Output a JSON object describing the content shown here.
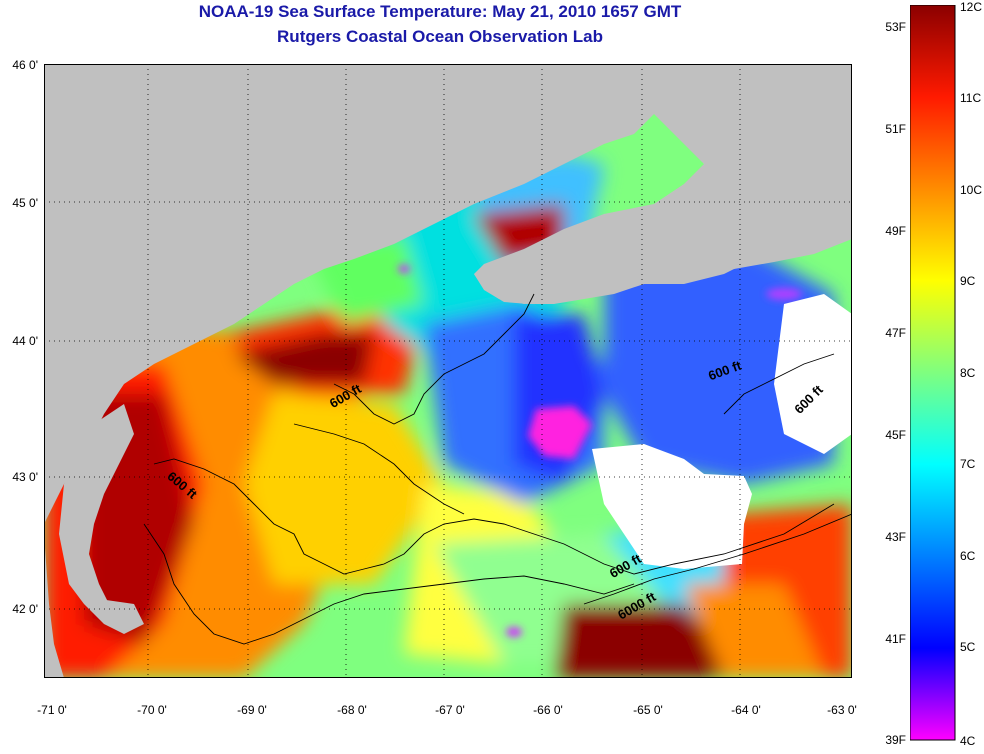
{
  "title": "NOAA-19 Sea Surface Temperature:  May 21, 2010 1657 GMT",
  "subtitle": "Rutgers Coastal Ocean Observation Lab",
  "map": {
    "lat_ticks": [
      "46 0'",
      "45 0'",
      "44 0'",
      "43 0'",
      "42 0'"
    ],
    "lon_ticks": [
      "-71 0'",
      "-70 0'",
      "-69 0'",
      "-68 0'",
      "-67 0'",
      "-66 0'",
      "-65 0'",
      "-64 0'",
      "-63 0'"
    ],
    "lat_range": [
      41.5,
      46
    ],
    "lon_range": [
      -71,
      -63
    ],
    "contour_labels": [
      "600 ft",
      "600 ft",
      "600 ft",
      "600 ft",
      "600 ft",
      "6000 ft"
    ],
    "land_color": "#c0c0c0",
    "cloud_color": "#ffffff"
  },
  "colorbar": {
    "f_labels": [
      "53F",
      "51F",
      "49F",
      "47F",
      "45F",
      "43F",
      "41F",
      "39F"
    ],
    "c_labels": [
      "12C",
      "11C",
      "10C",
      "9C",
      "8C",
      "7C",
      "6C",
      "5C",
      "4C"
    ],
    "colors": [
      "#8b0000",
      "#ff1a00",
      "#ff8c00",
      "#ffff00",
      "#7fff7f",
      "#00ffff",
      "#0080ff",
      "#0000ff",
      "#ff00ff"
    ]
  }
}
